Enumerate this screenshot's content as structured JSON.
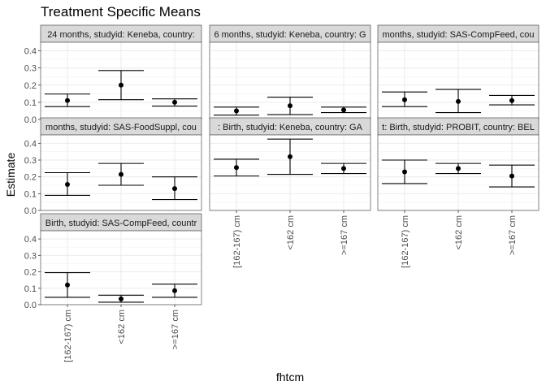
{
  "chart_data": {
    "type": "scatter",
    "title": "Treatment Specific Means",
    "xlabel": "fhtcm",
    "ylabel": "Estimate",
    "categories": [
      "[162-167) cm",
      "<162 cm",
      ">=167 cm"
    ],
    "ylim": [
      0,
      0.45
    ],
    "yticks": [
      "0.0",
      "0.1",
      "0.2",
      "0.3",
      "0.4"
    ],
    "grid": true,
    "panels": [
      {
        "label": "24 months, studyid: Keneba, country:",
        "points": [
          {
            "category": "[162-167) cm",
            "estimate": 0.11,
            "lower": 0.075,
            "upper": 0.148
          },
          {
            "category": "<162 cm",
            "estimate": 0.2,
            "lower": 0.115,
            "upper": 0.285
          },
          {
            "category": ">=167 cm",
            "estimate": 0.1,
            "lower": 0.078,
            "upper": 0.12
          }
        ]
      },
      {
        "label": "6 months, studyid: Keneba, country: G",
        "points": [
          {
            "category": "[162-167) cm",
            "estimate": 0.05,
            "lower": 0.025,
            "upper": 0.072
          },
          {
            "category": "<162 cm",
            "estimate": 0.08,
            "lower": 0.028,
            "upper": 0.13
          },
          {
            "category": ">=167 cm",
            "estimate": 0.055,
            "lower": 0.04,
            "upper": 0.072
          }
        ]
      },
      {
        "label": "months, studyid: SAS-CompFeed, cou",
        "points": [
          {
            "category": "[162-167) cm",
            "estimate": 0.115,
            "lower": 0.075,
            "upper": 0.16
          },
          {
            "category": "<162 cm",
            "estimate": 0.105,
            "lower": 0.04,
            "upper": 0.175
          },
          {
            "category": ">=167 cm",
            "estimate": 0.11,
            "lower": 0.085,
            "upper": 0.14
          }
        ]
      },
      {
        "label": "months, studyid: SAS-FoodSuppl, cou",
        "points": [
          {
            "category": "[162-167) cm",
            "estimate": 0.155,
            "lower": 0.09,
            "upper": 0.225
          },
          {
            "category": "<162 cm",
            "estimate": 0.215,
            "lower": 0.15,
            "upper": 0.28
          },
          {
            "category": ">=167 cm",
            "estimate": 0.13,
            "lower": 0.065,
            "upper": 0.2
          }
        ]
      },
      {
        "label": ": Birth, studyid: Keneba, country: GA",
        "points": [
          {
            "category": "[162-167) cm",
            "estimate": 0.255,
            "lower": 0.205,
            "upper": 0.305
          },
          {
            "category": "<162 cm",
            "estimate": 0.32,
            "lower": 0.215,
            "upper": 0.425
          },
          {
            "category": ">=167 cm",
            "estimate": 0.25,
            "lower": 0.22,
            "upper": 0.28
          }
        ]
      },
      {
        "label": "t: Birth, studyid: PROBIT, country: BEL",
        "points": [
          {
            "category": "[162-167) cm",
            "estimate": 0.23,
            "lower": 0.16,
            "upper": 0.3
          },
          {
            "category": "<162 cm",
            "estimate": 0.25,
            "lower": 0.22,
            "upper": 0.28
          },
          {
            "category": ">=167 cm",
            "estimate": 0.205,
            "lower": 0.14,
            "upper": 0.27
          }
        ]
      },
      {
        "label": "Birth, studyid: SAS-CompFeed, countr",
        "points": [
          {
            "category": "[162-167) cm",
            "estimate": 0.12,
            "lower": 0.045,
            "upper": 0.195
          },
          {
            "category": "<162 cm",
            "estimate": 0.035,
            "lower": 0.015,
            "upper": 0.058
          },
          {
            "category": ">=167 cm",
            "estimate": 0.085,
            "lower": 0.045,
            "upper": 0.125
          }
        ]
      }
    ]
  }
}
